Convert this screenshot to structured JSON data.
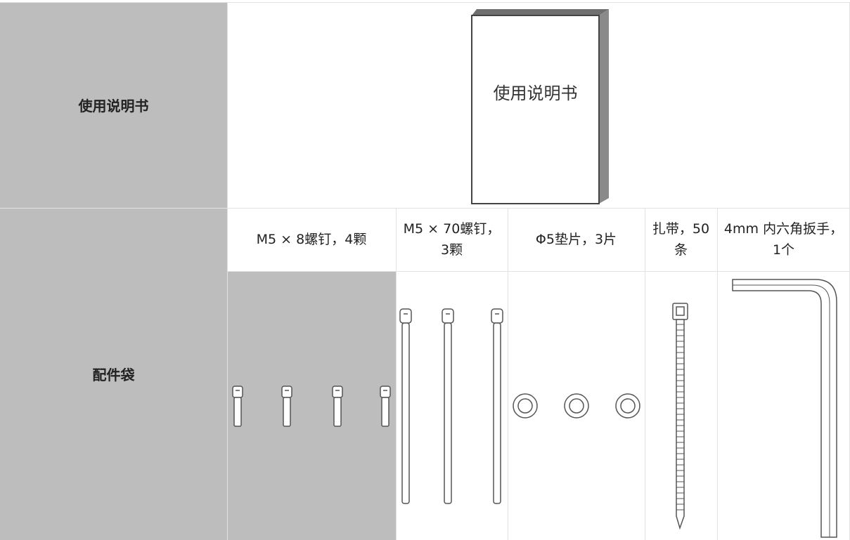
{
  "table": {
    "rows": [
      {
        "label": "使用说明书",
        "book_label": "使用说明书"
      },
      {
        "label": "配件袋",
        "items": [
          "M5 × 8螺钉，4颗",
          "M5 × 70螺钉，3颗",
          "Φ5垫片，3片",
          "扎带，50条",
          "4mm 内六角扳手，1个"
        ]
      }
    ]
  }
}
